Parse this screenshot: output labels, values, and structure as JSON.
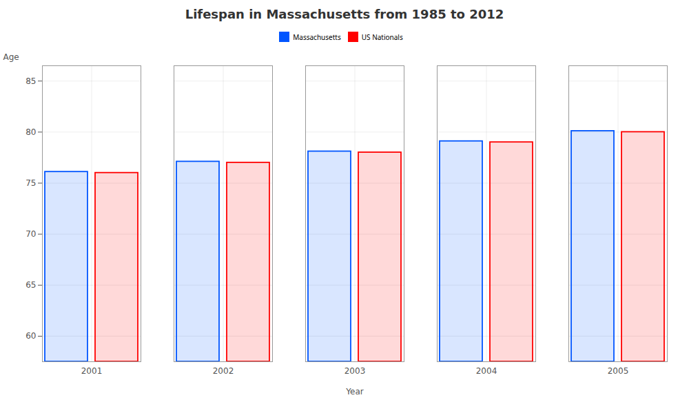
{
  "chart_data": {
    "type": "bar",
    "title": "Lifespan in Massachusetts from 1985 to 2012",
    "xlabel": "Year",
    "ylabel": "Age",
    "categories": [
      "2001",
      "2002",
      "2003",
      "2004",
      "2005"
    ],
    "series": [
      {
        "name": "Massachusetts",
        "color": "#0055ff",
        "values": [
          76.1,
          77.1,
          78.1,
          79.1,
          80.1
        ]
      },
      {
        "name": "US Nationals",
        "color": "#ff0000",
        "values": [
          76.0,
          77.0,
          78.0,
          79.0,
          80.0
        ]
      }
    ],
    "ylim": [
      57.5,
      86.5
    ],
    "yticks": [
      60,
      65,
      70,
      75,
      80,
      85
    ],
    "grid": true,
    "legend": "top"
  }
}
